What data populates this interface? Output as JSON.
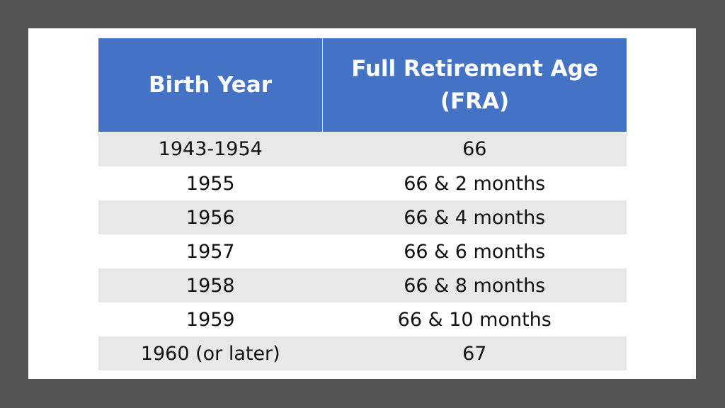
{
  "table": {
    "headers": [
      "Birth Year",
      "Full Retirement Age (FRA)"
    ],
    "rows": [
      [
        "1943-1954",
        "66"
      ],
      [
        "1955",
        "66 & 2 months"
      ],
      [
        "1956",
        "66 & 4 months"
      ],
      [
        "1957",
        "66 & 6 months"
      ],
      [
        "1958",
        "66 & 8 months"
      ],
      [
        "1959",
        "66 & 10 months"
      ],
      [
        "1960 (or later)",
        "67"
      ]
    ]
  },
  "colors": {
    "header_bg": "#4472c4",
    "stripe_bg": "#e8e8e8",
    "frame": "#545454"
  }
}
